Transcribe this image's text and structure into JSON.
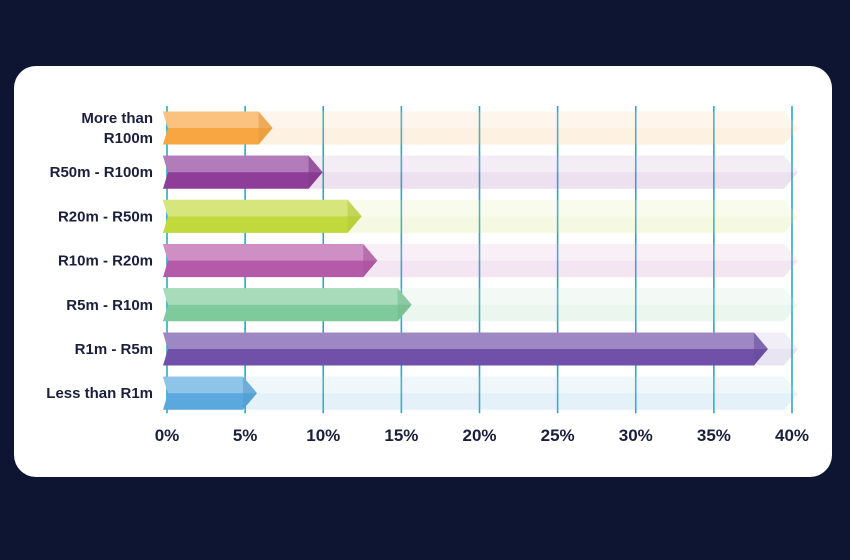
{
  "chart_data": {
    "type": "bar",
    "orientation": "horizontal",
    "categories": [
      [
        "More than",
        "R100m"
      ],
      [
        "R50m - R100m"
      ],
      [
        "R20m - R50m"
      ],
      [
        "R10m - R20m"
      ],
      [
        "R5m - R10m"
      ],
      [
        "R1m - R5m"
      ],
      [
        "Less than R1m"
      ]
    ],
    "values": [
      6.5,
      9.7,
      12.2,
      13.2,
      15.4,
      38.2,
      5.5
    ],
    "xlim": [
      0,
      40
    ],
    "xticks": [
      0,
      5,
      10,
      15,
      20,
      25,
      30,
      35,
      40
    ],
    "xtick_labels": [
      "0%",
      "5%",
      "10%",
      "15%",
      "20%",
      "25%",
      "30%",
      "35%",
      "40%"
    ],
    "grid": "vertical",
    "colors": {
      "bars": [
        "#f7a642",
        "#8e3d98",
        "#c2d93e",
        "#b55aa8",
        "#7fca9a",
        "#7050a8",
        "#5aa8de"
      ],
      "grid": "#2aa8c8",
      "track_opacity": 0.2,
      "text": "#1b1f3b",
      "card": "#ffffff",
      "background": "#0d1532"
    }
  }
}
